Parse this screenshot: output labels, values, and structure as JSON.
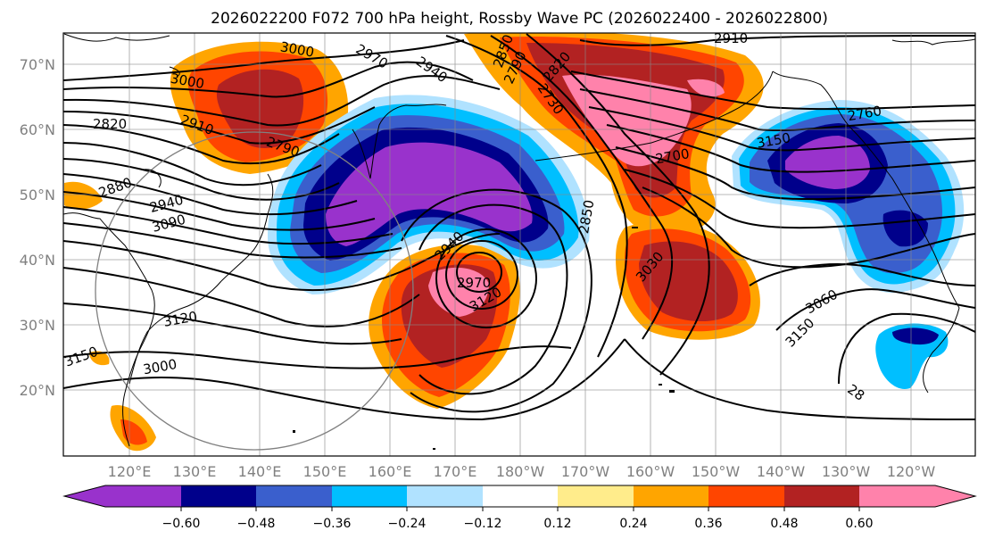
{
  "title": "2026022200 F072 700 hPa height, Rossby Wave PC (2026022400 - 2026022800)",
  "map": {
    "lat_ticks": [
      "70°N",
      "60°N",
      "50°N",
      "40°N",
      "30°N",
      "20°N"
    ],
    "lon_ticks": [
      "120°E",
      "130°E",
      "140°E",
      "150°E",
      "160°E",
      "170°E",
      "180°W",
      "170°W",
      "160°W",
      "150°W",
      "140°W",
      "130°W",
      "120°W"
    ],
    "contour_labels": [
      "3000",
      "2970",
      "2940",
      "3000",
      "2850",
      "2820",
      "2910",
      "2790",
      "2880",
      "2940",
      "3090",
      "3120",
      "3150",
      "3000",
      "2940",
      "2970",
      "3120",
      "2850",
      "2790",
      "2820",
      "2730",
      "2910",
      "2700",
      "2760",
      "3150",
      "3030",
      "3060",
      "3150",
      "28"
    ]
  },
  "colorbar": {
    "ticks": [
      "−0.60",
      "−0.48",
      "−0.36",
      "−0.24",
      "−0.12",
      "0.12",
      "0.24",
      "0.36",
      "0.48",
      "0.60"
    ],
    "colors": [
      "#9932cc",
      "#00008b",
      "#3a5fcd",
      "#00bfff",
      "#b0e2ff",
      "#ffffff",
      "#ffec8b",
      "#ffa500",
      "#ff4500",
      "#b22222",
      "#ff82ab"
    ]
  }
}
